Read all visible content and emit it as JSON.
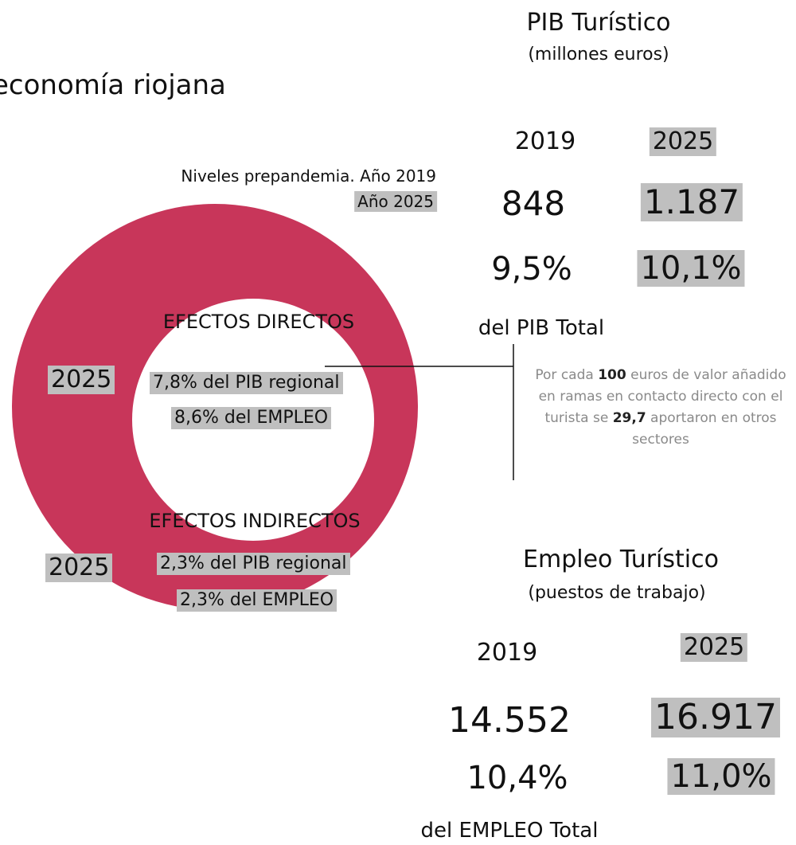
{
  "title": "economía riojana",
  "pib": {
    "heading": "PIB Turístico",
    "unit": "(millones euros)",
    "years": [
      "2019",
      "2025"
    ],
    "values": [
      "848",
      "1.187"
    ],
    "shares": [
      "9,5%",
      "10,1%"
    ],
    "share_label": "del PIB Total"
  },
  "note": [
    "Por cada ",
    "100",
    " euros de valor añadido en ramas en contacto directo con el turista se ",
    "29,7",
    " aportaron en otros sectores"
  ],
  "legend": [
    "Niveles prepandemia. Año 2019",
    "Año 2025"
  ],
  "direct": {
    "heading": "EFECTOS DIRECTOS",
    "year": "2025",
    "lines": [
      "7,8% del PIB regional",
      "8,6% del EMPLEO"
    ]
  },
  "indirect": {
    "heading": "EFECTOS INDIRECTOS",
    "year": "2025",
    "lines": [
      "2,3% del PIB regional",
      "2,3% del EMPLEO"
    ]
  },
  "empleo": {
    "heading": "Empleo Turístico",
    "unit": "(puestos de trabajo)",
    "years": [
      "2019",
      "2025"
    ],
    "values": [
      "14.552",
      "16.917"
    ],
    "shares": [
      "10,4%",
      "11,0%"
    ],
    "share_label": "del EMPLEO Total"
  }
}
